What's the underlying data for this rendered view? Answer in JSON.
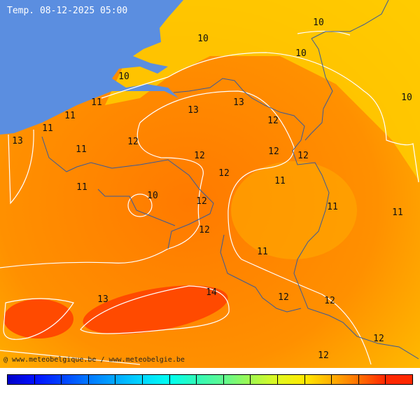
{
  "title": "Temp. 08-12-2025 05:00",
  "credit": "@ www.meteobelgique.be / www.meteobelgie.be",
  "colors": {
    "sea": "#5b8ee0",
    "border": "#3a5a9a",
    "contour": "#ffffff",
    "low": "#ffd000",
    "mid": "#ff8c00",
    "high": "#ff4000"
  },
  "colorbar": [
    "#0000c8",
    "#0010ff",
    "#0040ff",
    "#0078ff",
    "#00a8ff",
    "#00d8ff",
    "#00fff0",
    "#30f8b8",
    "#60f890",
    "#a0f850",
    "#e0f820",
    "#ffe800",
    "#ffb000",
    "#ff7000",
    "#ff2800"
  ],
  "temperature_labels": [
    "10",
    "10",
    "10",
    "10",
    "10",
    "11",
    "11",
    "11",
    "13",
    "11",
    "12",
    "13",
    "13",
    "12",
    "12",
    "12",
    "12",
    "12",
    "11",
    "11",
    "10",
    "12",
    "11",
    "11",
    "12",
    "11",
    "13",
    "14",
    "12",
    "12",
    "12",
    "12"
  ]
}
